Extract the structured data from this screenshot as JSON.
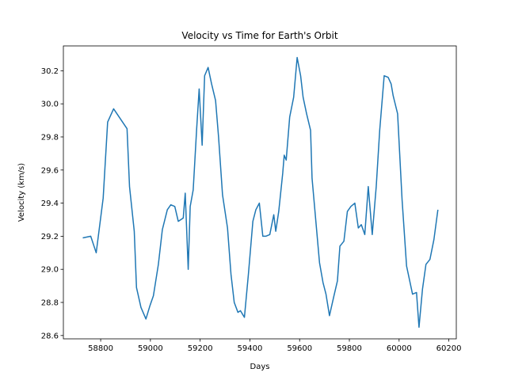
{
  "chart_data": {
    "type": "line",
    "title": "Velocity vs Time for Earth's Orbit",
    "xlabel": "Days",
    "ylabel": "Velocity (km/s)",
    "xlim": [
      58650,
      60230
    ],
    "ylim": [
      28.58,
      30.35
    ],
    "xticks": [
      58800,
      59000,
      59200,
      59400,
      59600,
      59800,
      60000,
      60200
    ],
    "yticks": [
      28.6,
      28.8,
      29.0,
      29.2,
      29.4,
      29.6,
      29.8,
      30.0,
      30.2
    ],
    "ytick_decimals": 1,
    "grid": false,
    "legend": "none",
    "series": [
      {
        "color": "#1f77b4",
        "x": [
          58728,
          58760,
          58782,
          58810,
          58828,
          58852,
          58906,
          58916,
          58935,
          58944,
          58962,
          58982,
          58998,
          59012,
          59032,
          59048,
          59068,
          59082,
          59098,
          59112,
          59132,
          59140,
          59152,
          59160,
          59172,
          59186,
          59196,
          59208,
          59218,
          59232,
          59246,
          59262,
          59274,
          59290,
          59310,
          59324,
          59337,
          59352,
          59362,
          59378,
          59394,
          59412,
          59424,
          59438,
          59452,
          59464,
          59480,
          59496,
          59504,
          59516,
          59532,
          59538,
          59546,
          59560,
          59576,
          59590,
          59604,
          59614,
          59628,
          59644,
          59650,
          59660,
          59680,
          59694,
          59706,
          59720,
          59738,
          59752,
          59762,
          59778,
          59792,
          59806,
          59822,
          59836,
          59848,
          59862,
          59876,
          59892,
          59908,
          59922,
          59940,
          59956,
          59968,
          59976,
          59994,
          60012,
          60030,
          60054,
          60070,
          60080,
          60094,
          60108,
          60124,
          60140,
          60156
        ],
        "y": [
          29.19,
          29.2,
          29.1,
          29.43,
          29.89,
          29.97,
          29.85,
          29.5,
          29.23,
          28.89,
          28.77,
          28.7,
          28.78,
          28.84,
          29.03,
          29.24,
          29.36,
          29.39,
          29.38,
          29.29,
          29.31,
          29.46,
          29.0,
          29.38,
          29.48,
          29.85,
          30.09,
          29.75,
          30.17,
          30.22,
          30.12,
          30.02,
          29.8,
          29.45,
          29.25,
          28.97,
          28.8,
          28.74,
          28.75,
          28.71,
          28.97,
          29.29,
          29.36,
          29.4,
          29.2,
          29.2,
          29.21,
          29.33,
          29.23,
          29.35,
          29.58,
          29.69,
          29.66,
          29.92,
          30.04,
          30.28,
          30.17,
          30.04,
          29.94,
          29.84,
          29.55,
          29.38,
          29.04,
          28.92,
          28.85,
          28.72,
          28.84,
          28.93,
          29.14,
          29.17,
          29.35,
          29.38,
          29.4,
          29.25,
          29.27,
          29.21,
          29.5,
          29.21,
          29.5,
          29.84,
          30.17,
          30.16,
          30.12,
          30.05,
          29.94,
          29.42,
          29.02,
          28.85,
          28.86,
          28.65,
          28.88,
          29.03,
          29.06,
          29.18,
          29.36
        ]
      }
    ]
  }
}
